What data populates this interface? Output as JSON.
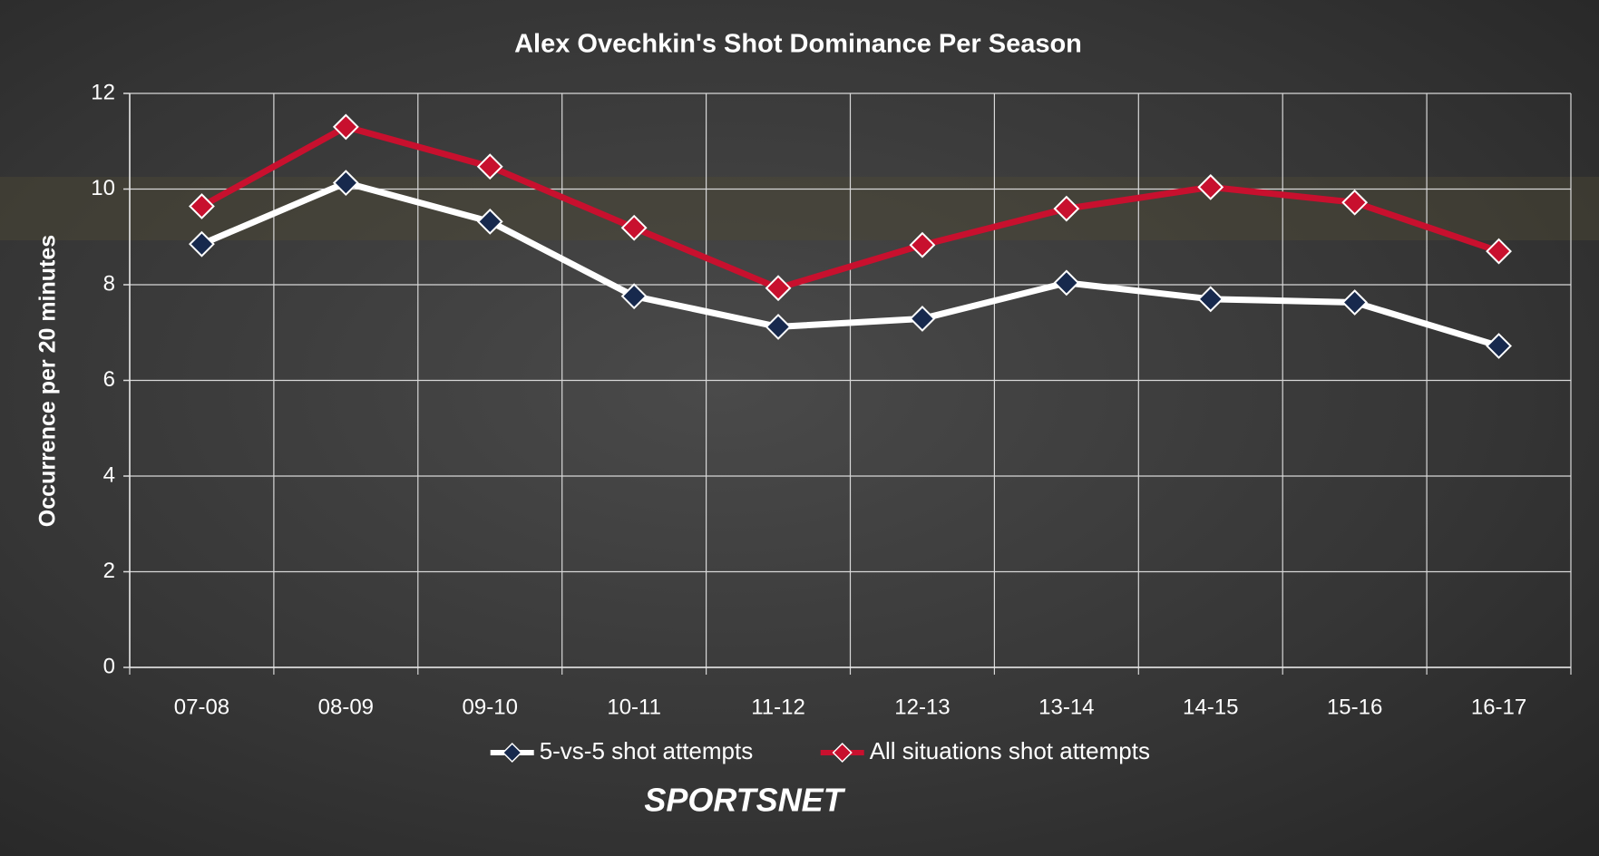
{
  "chart_data": {
    "type": "line",
    "title": "Alex Ovechkin's Shot Dominance Per Season",
    "y_label": "Occurrence per 20 minutes",
    "logo": "SPORTSNET",
    "categories": [
      "07-08",
      "08-09",
      "09-10",
      "10-11",
      "11-12",
      "12-13",
      "13-14",
      "14-15",
      "15-16",
      "16-17"
    ],
    "series": [
      {
        "name": "5-vs-5 shot attempts",
        "color": "#ffffff",
        "marker_color": "#17294d",
        "values": [
          8.85,
          10.13,
          9.32,
          7.76,
          7.12,
          7.29,
          8.04,
          7.7,
          7.63,
          6.72
        ]
      },
      {
        "name": "All situations shot attempts",
        "color": "#c8102e",
        "marker_color": "#c8102e",
        "values": [
          9.64,
          11.3,
          10.47,
          9.19,
          7.93,
          8.83,
          9.59,
          10.04,
          9.72,
          8.7
        ]
      }
    ],
    "ylim": [
      0,
      12
    ],
    "yticks": [
      0,
      2,
      4,
      6,
      8,
      10,
      12
    ],
    "grid": true,
    "legend": "bottom"
  }
}
